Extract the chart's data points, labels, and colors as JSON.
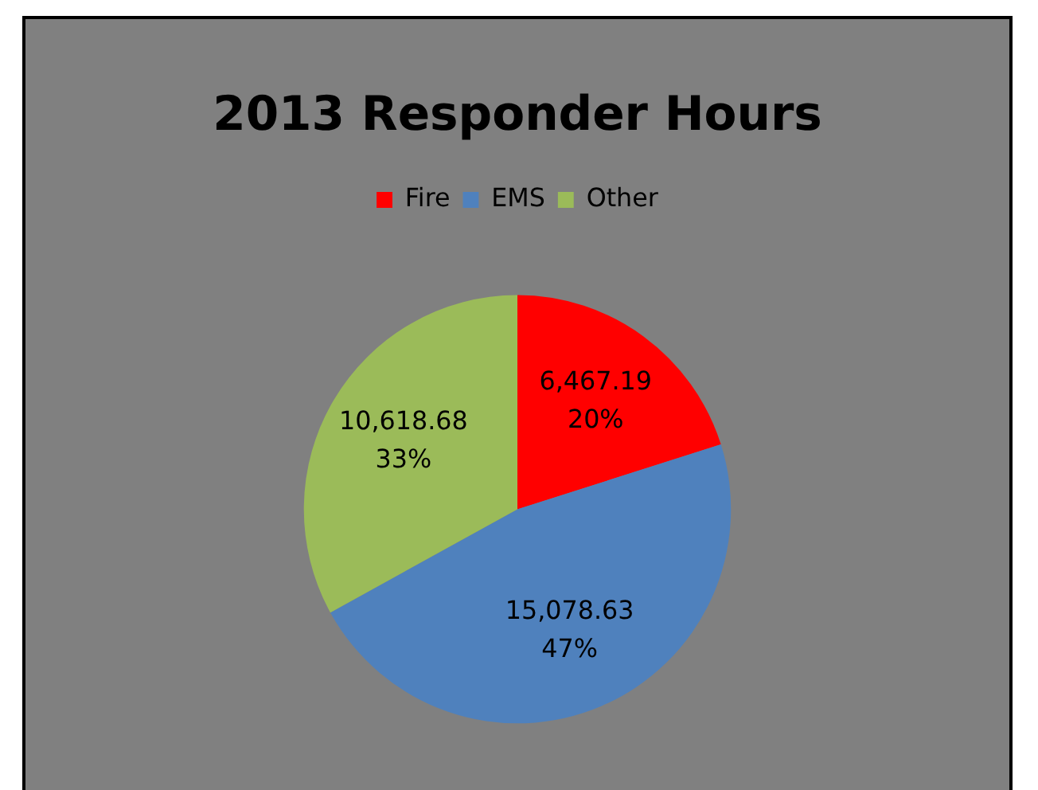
{
  "chart_data": {
    "type": "pie",
    "title": "2013 Responder Hours",
    "categories": [
      "Fire",
      "EMS",
      "Other"
    ],
    "values": [
      6467.19,
      15078.63,
      10618.68
    ],
    "colors": [
      "#ff0000",
      "#4f81bd",
      "#9bbb59"
    ],
    "value_labels": [
      "6,467.19\n20%",
      "15,078.63\n47%",
      "10,618.68\n33%"
    ],
    "legend": "top"
  }
}
